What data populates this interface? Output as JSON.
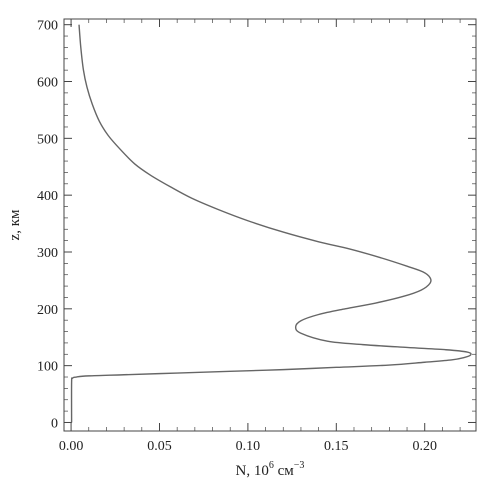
{
  "chart_data": {
    "type": "line",
    "title": "",
    "xlabel": "N, 10",
    "xlabel_exp": "6",
    "xlabel_unit": " см",
    "xlabel_unit_exp": "−3",
    "ylabel": "z, км",
    "xlim": [
      -0.004,
      0.229
    ],
    "ylim": [
      -15,
      710
    ],
    "xticks": [
      0.0,
      0.05,
      0.1,
      0.15,
      0.2
    ],
    "xtick_labels": [
      "0.00",
      "0.05",
      "0.10",
      "0.15",
      "0.20"
    ],
    "yticks": [
      0,
      100,
      200,
      300,
      400,
      500,
      600,
      700
    ],
    "ytick_labels": [
      "0",
      "100",
      "200",
      "300",
      "400",
      "500",
      "600",
      "700"
    ],
    "grid": false,
    "line_color": "#666666",
    "series": [
      {
        "x": [
          0.0003,
          0.0003,
          0.0008,
          0.003,
          0.01,
          0.03,
          0.06,
          0.09,
          0.12,
          0.15,
          0.18,
          0.2,
          0.215,
          0.222,
          0.226,
          0.224,
          0.212,
          0.19,
          0.165,
          0.145,
          0.13,
          0.127,
          0.13,
          0.14,
          0.155,
          0.172,
          0.188,
          0.198,
          0.203,
          0.203,
          0.199,
          0.19,
          0.175,
          0.158,
          0.14,
          0.12,
          0.1,
          0.083,
          0.068,
          0.056,
          0.045,
          0.036,
          0.028,
          0.021,
          0.016,
          0.012,
          0.009,
          0.007,
          0.0055,
          0.0045
        ],
        "y": [
          0,
          70,
          78,
          80,
          82,
          84,
          87,
          90,
          93,
          97,
          101,
          106,
          110,
          114,
          119,
          124,
          128,
          132,
          137,
          143,
          157,
          168,
          179,
          190,
          200,
          210,
          222,
          233,
          245,
          255,
          265,
          275,
          290,
          305,
          318,
          335,
          355,
          375,
          395,
          415,
          435,
          455,
          480,
          505,
          530,
          560,
          590,
          620,
          660,
          700
        ]
      }
    ]
  }
}
